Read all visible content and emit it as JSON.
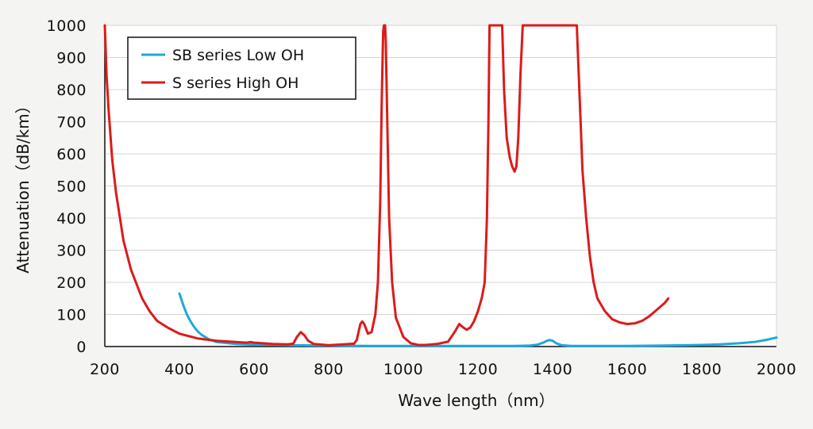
{
  "chart_data": {
    "type": "line",
    "title": "",
    "xlabel": "Wave length（nm）",
    "ylabel": "Attenuation（dB/km）",
    "xlim": [
      200,
      2000
    ],
    "ylim": [
      0,
      1000
    ],
    "xticks": [
      "200",
      "400",
      "600",
      "800",
      "1000",
      "1200",
      "1400",
      "1600",
      "1800",
      "2000"
    ],
    "yticks": [
      "0",
      "100",
      "200",
      "300",
      "400",
      "500",
      "600",
      "700",
      "800",
      "900",
      "1000"
    ],
    "grid": "horizontal",
    "legend_position": "top-left",
    "series": [
      {
        "name": "SB series Low OH",
        "color": "#1fa8d8",
        "points": [
          [
            400,
            165
          ],
          [
            410,
            130
          ],
          [
            420,
            100
          ],
          [
            430,
            78
          ],
          [
            440,
            60
          ],
          [
            450,
            46
          ],
          [
            460,
            36
          ],
          [
            480,
            22
          ],
          [
            500,
            14
          ],
          [
            550,
            8
          ],
          [
            600,
            6
          ],
          [
            700,
            4
          ],
          [
            800,
            3
          ],
          [
            900,
            2
          ],
          [
            1000,
            2
          ],
          [
            1100,
            2
          ],
          [
            1200,
            2
          ],
          [
            1300,
            2
          ],
          [
            1340,
            3
          ],
          [
            1360,
            6
          ],
          [
            1375,
            12
          ],
          [
            1385,
            18
          ],
          [
            1393,
            20
          ],
          [
            1400,
            18
          ],
          [
            1410,
            10
          ],
          [
            1425,
            4
          ],
          [
            1450,
            2
          ],
          [
            1500,
            2
          ],
          [
            1600,
            2
          ],
          [
            1700,
            3
          ],
          [
            1800,
            5
          ],
          [
            1850,
            7
          ],
          [
            1900,
            10
          ],
          [
            1940,
            14
          ],
          [
            1970,
            20
          ],
          [
            2000,
            28
          ]
        ]
      },
      {
        "name": "S series High OH",
        "color": "#dd1a1a",
        "points": [
          [
            200,
            1000
          ],
          [
            205,
            840
          ],
          [
            210,
            740
          ],
          [
            220,
            580
          ],
          [
            230,
            480
          ],
          [
            250,
            330
          ],
          [
            270,
            240
          ],
          [
            300,
            150
          ],
          [
            320,
            110
          ],
          [
            340,
            80
          ],
          [
            370,
            58
          ],
          [
            400,
            40
          ],
          [
            450,
            25
          ],
          [
            500,
            18
          ],
          [
            550,
            14
          ],
          [
            580,
            12
          ],
          [
            590,
            14
          ],
          [
            600,
            12
          ],
          [
            650,
            8
          ],
          [
            690,
            7
          ],
          [
            705,
            9
          ],
          [
            715,
            30
          ],
          [
            725,
            45
          ],
          [
            735,
            35
          ],
          [
            745,
            18
          ],
          [
            760,
            8
          ],
          [
            800,
            4
          ],
          [
            840,
            7
          ],
          [
            868,
            9
          ],
          [
            875,
            20
          ],
          [
            885,
            70
          ],
          [
            890,
            78
          ],
          [
            895,
            70
          ],
          [
            905,
            40
          ],
          [
            915,
            45
          ],
          [
            925,
            100
          ],
          [
            932,
            200
          ],
          [
            938,
            450
          ],
          [
            942,
            750
          ],
          [
            946,
            980
          ],
          [
            948,
            1000
          ],
          [
            951,
            1000
          ],
          [
            953,
            950
          ],
          [
            957,
            700
          ],
          [
            962,
            400
          ],
          [
            970,
            200
          ],
          [
            980,
            90
          ],
          [
            1000,
            30
          ],
          [
            1020,
            10
          ],
          [
            1040,
            5
          ],
          [
            1060,
            5
          ],
          [
            1090,
            8
          ],
          [
            1120,
            15
          ],
          [
            1140,
            50
          ],
          [
            1150,
            70
          ],
          [
            1160,
            60
          ],
          [
            1170,
            52
          ],
          [
            1180,
            60
          ],
          [
            1190,
            80
          ],
          [
            1200,
            110
          ],
          [
            1210,
            150
          ],
          [
            1218,
            200
          ],
          [
            1224,
            400
          ],
          [
            1228,
            700
          ],
          [
            1231,
            1000
          ],
          [
            1265,
            1000
          ],
          [
            1270,
            800
          ],
          [
            1277,
            650
          ],
          [
            1285,
            590
          ],
          [
            1292,
            560
          ],
          [
            1298,
            545
          ],
          [
            1303,
            560
          ],
          [
            1308,
            650
          ],
          [
            1314,
            850
          ],
          [
            1320,
            1000
          ],
          [
            1465,
            1000
          ],
          [
            1470,
            850
          ],
          [
            1475,
            700
          ],
          [
            1480,
            550
          ],
          [
            1490,
            400
          ],
          [
            1500,
            280
          ],
          [
            1510,
            200
          ],
          [
            1520,
            150
          ],
          [
            1540,
            110
          ],
          [
            1560,
            85
          ],
          [
            1580,
            75
          ],
          [
            1600,
            70
          ],
          [
            1620,
            72
          ],
          [
            1640,
            80
          ],
          [
            1660,
            95
          ],
          [
            1680,
            115
          ],
          [
            1700,
            135
          ],
          [
            1710,
            150
          ]
        ]
      }
    ]
  }
}
